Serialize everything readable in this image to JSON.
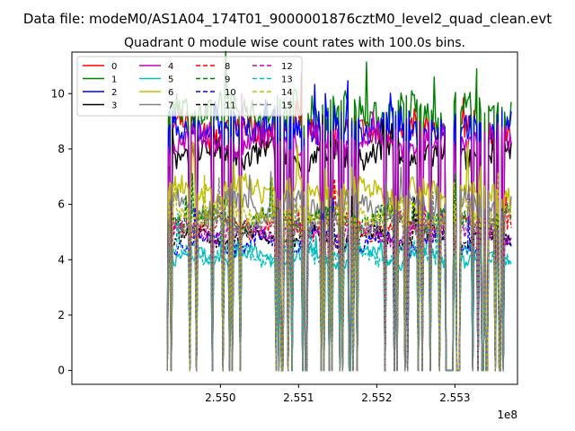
{
  "chart_data": {
    "type": "line",
    "suptitle": "Data file: modeM0/AS1A04_174T01_9000001876cztM0_level2_quad_clean.evt",
    "title": "Quadrant 0 module wise count rates with 100.0s bins.",
    "xlabel": "",
    "ylabel": "",
    "x_offset_label": "1e8",
    "xlim": [
      2.5481,
      2.5538
    ],
    "ylim": [
      -0.5,
      11.5
    ],
    "x_ticks": [
      2.55,
      2.551,
      2.552,
      2.553
    ],
    "x_tick_labels": [
      "2.550",
      "2.551",
      "2.552",
      "2.553"
    ],
    "y_ticks": [
      0,
      2,
      4,
      6,
      8,
      10
    ],
    "y_tick_labels": [
      "0",
      "2",
      "4",
      "6",
      "8",
      "10"
    ],
    "x_range": [
      2.54932,
      2.55372
    ],
    "grid": false,
    "legend": {
      "placement": "top-left",
      "columns": 4
    },
    "series": [
      {
        "name": "0",
        "color": "#ff0000",
        "style": "solid",
        "mean": 8.7
      },
      {
        "name": "1",
        "color": "#008000",
        "style": "solid",
        "mean": 9.4
      },
      {
        "name": "2",
        "color": "#0000ff",
        "style": "solid",
        "mean": 8.8
      },
      {
        "name": "3",
        "color": "#000000",
        "style": "solid",
        "mean": 7.8
      },
      {
        "name": "4",
        "color": "#bf00bf",
        "style": "solid",
        "mean": 8.3
      },
      {
        "name": "5",
        "color": "#00bfbf",
        "style": "solid",
        "mean": 4.1
      },
      {
        "name": "6",
        "color": "#bfbf00",
        "style": "solid",
        "mean": 6.5
      },
      {
        "name": "7",
        "color": "#808080",
        "style": "solid",
        "mean": 6.0
      },
      {
        "name": "8",
        "color": "#ff0000",
        "style": "dashed",
        "mean": 5.2
      },
      {
        "name": "9",
        "color": "#008000",
        "style": "dashed",
        "mean": 5.5
      },
      {
        "name": "10",
        "color": "#0000ff",
        "style": "dashed",
        "mean": 4.6
      },
      {
        "name": "11",
        "color": "#000000",
        "style": "dashed",
        "mean": 4.8
      },
      {
        "name": "12",
        "color": "#bf00bf",
        "style": "dashed",
        "mean": 5.0
      },
      {
        "name": "13",
        "color": "#00bfbf",
        "style": "dashed",
        "mean": 4.2
      },
      {
        "name": "14",
        "color": "#bfbf00",
        "style": "dashed",
        "mean": 5.7
      },
      {
        "name": "15",
        "color": "#808080",
        "style": "dashed",
        "mean": 5.3
      }
    ]
  }
}
